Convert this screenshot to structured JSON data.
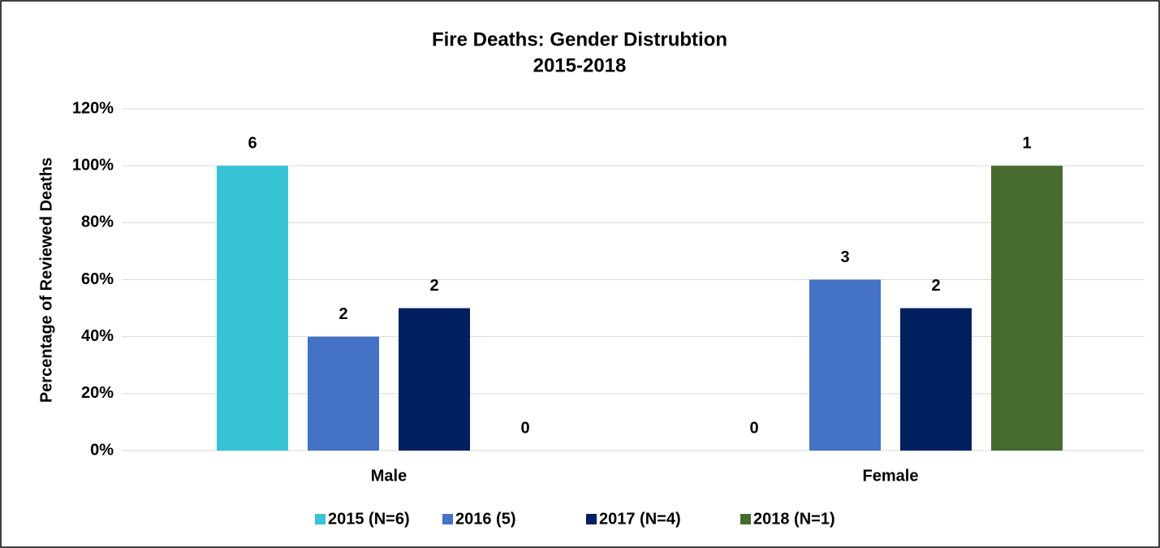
{
  "chart_data": {
    "type": "bar",
    "title": "Fire Deaths: Gender Distrubtion",
    "subtitle": "2015-2018",
    "y_label": "Percentage of Reviewed Deaths",
    "categories": [
      "Male",
      "Female"
    ],
    "series": [
      {
        "name": "2015 (N=6)",
        "color": "#36c3d4",
        "values": [
          100,
          0
        ],
        "counts": [
          6,
          0
        ]
      },
      {
        "name": "2016 (5)",
        "color": "#4472c4",
        "values": [
          40,
          60
        ],
        "counts": [
          2,
          3
        ]
      },
      {
        "name": "2017 (N=4)",
        "color": "#002060",
        "values": [
          50,
          50
        ],
        "counts": [
          2,
          2
        ]
      },
      {
        "name": "2018 (N=1)",
        "color": "#456b2e",
        "values": [
          0,
          100
        ],
        "counts": [
          0,
          1
        ]
      }
    ],
    "ylim": [
      0,
      120
    ],
    "yticks": [
      {
        "value": 0,
        "label": "0%"
      },
      {
        "value": 20,
        "label": "20%"
      },
      {
        "value": 40,
        "label": "40%"
      },
      {
        "value": 60,
        "label": "60%"
      },
      {
        "value": 80,
        "label": "80%"
      },
      {
        "value": 100,
        "label": "100%"
      },
      {
        "value": 120,
        "label": "120%"
      }
    ],
    "grid": true,
    "legend": "bottom"
  }
}
